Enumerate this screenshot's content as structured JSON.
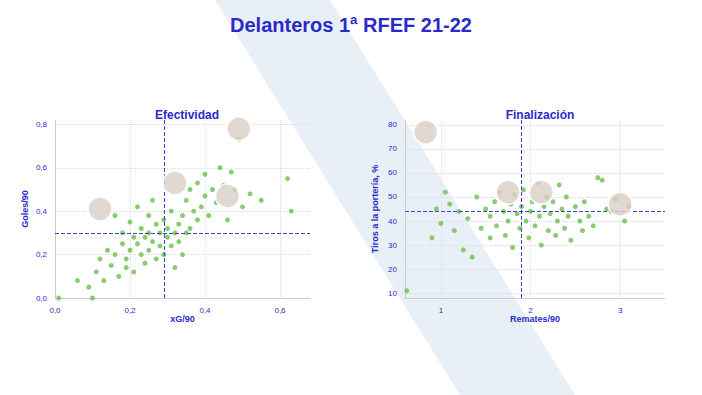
{
  "title": "Delanteros 1ª RFEF 21-22",
  "chart_data": [
    {
      "type": "scatter",
      "title": "Efectividad",
      "x_label": "xG/90",
      "y_label": "Goles/90",
      "xlim": [
        0,
        0.68
      ],
      "ylim": [
        0,
        0.82
      ],
      "xticks": [
        {
          "value": 0,
          "label": "0,0"
        },
        {
          "value": 0.2,
          "label": "0,2"
        },
        {
          "value": 0.4,
          "label": "0,4"
        },
        {
          "value": 0.6,
          "label": "0,6"
        }
      ],
      "yticks": [
        {
          "value": 0,
          "label": "0,0"
        },
        {
          "value": 0.2,
          "label": "0,2"
        },
        {
          "value": 0.4,
          "label": "0,4"
        },
        {
          "value": 0.6,
          "label": "0,6"
        },
        {
          "value": 0.8,
          "label": "0,8"
        }
      ],
      "grid": true,
      "reference_lines": {
        "x": 0.29,
        "y": 0.305
      },
      "series": [
        {
          "color": "#6cbf4a",
          "marker": "circle",
          "values": [
            [
              0.01,
              0
            ],
            [
              0.06,
              0.08
            ],
            [
              0.09,
              0.05
            ],
            [
              0.1,
              0.0
            ],
            [
              0.11,
              0.12
            ],
            [
              0.12,
              0.18
            ],
            [
              0.13,
              0.08
            ],
            [
              0.14,
              0.22
            ],
            [
              0.15,
              0.15
            ],
            [
              0.16,
              0.2
            ],
            [
              0.16,
              0.38
            ],
            [
              0.17,
              0.1
            ],
            [
              0.18,
              0.25
            ],
            [
              0.18,
              0.3
            ],
            [
              0.19,
              0.18
            ],
            [
              0.19,
              0.14
            ],
            [
              0.2,
              0.22
            ],
            [
              0.2,
              0.35
            ],
            [
              0.21,
              0.28
            ],
            [
              0.21,
              0.12
            ],
            [
              0.22,
              0.42
            ],
            [
              0.22,
              0.25
            ],
            [
              0.23,
              0.2
            ],
            [
              0.23,
              0.32
            ],
            [
              0.24,
              0.28
            ],
            [
              0.24,
              0.16
            ],
            [
              0.25,
              0.3
            ],
            [
              0.25,
              0.38
            ],
            [
              0.25,
              0.22
            ],
            [
              0.26,
              0.45
            ],
            [
              0.26,
              0.26
            ],
            [
              0.27,
              0.34
            ],
            [
              0.27,
              0.18
            ],
            [
              0.28,
              0.3
            ],
            [
              0.28,
              0.24
            ],
            [
              0.29,
              0.36
            ],
            [
              0.29,
              0.2
            ],
            [
              0.3,
              0.28
            ],
            [
              0.3,
              0.32
            ],
            [
              0.31,
              0.24
            ],
            [
              0.31,
              0.4
            ],
            [
              0.32,
              0.3
            ],
            [
              0.32,
              0.14
            ],
            [
              0.33,
              0.34
            ],
            [
              0.33,
              0.26
            ],
            [
              0.34,
              0.38
            ],
            [
              0.34,
              0.2
            ],
            [
              0.35,
              0.45
            ],
            [
              0.35,
              0.3
            ],
            [
              0.36,
              0.32
            ],
            [
              0.36,
              0.5
            ],
            [
              0.37,
              0.4
            ],
            [
              0.38,
              0.53
            ],
            [
              0.38,
              0.36
            ],
            [
              0.39,
              0.42
            ],
            [
              0.4,
              0.57
            ],
            [
              0.4,
              0.47
            ],
            [
              0.41,
              0.38
            ],
            [
              0.42,
              0.5
            ],
            [
              0.43,
              0.44
            ],
            [
              0.44,
              0.6
            ],
            [
              0.45,
              0.52
            ],
            [
              0.46,
              0.36
            ],
            [
              0.47,
              0.58
            ],
            [
              0.48,
              0.5
            ],
            [
              0.49,
              0.73
            ],
            [
              0.5,
              0.42
            ],
            [
              0.52,
              0.48
            ],
            [
              0.55,
              0.45
            ],
            [
              0.62,
              0.55
            ],
            [
              0.63,
              0.4
            ]
          ]
        },
        {
          "color": "#d9cfc6",
          "marker": "circle",
          "values": [
            [
              0.49,
              0.78
            ],
            [
              0.32,
              0.53
            ],
            [
              0.46,
              0.47
            ],
            [
              0.12,
              0.41
            ]
          ]
        }
      ]
    },
    {
      "type": "scatter",
      "title": "Finalización",
      "x_label": "Remates/90",
      "y_label": "Tiros a la portería, %",
      "xlim": [
        0.6,
        3.5
      ],
      "ylim": [
        8,
        82
      ],
      "xticks": [
        1,
        2,
        3
      ],
      "yticks": [
        10,
        20,
        30,
        40,
        50,
        60,
        70,
        80
      ],
      "grid": true,
      "reference_lines": {
        "x": 1.9,
        "y": 44
      },
      "series": [
        {
          "color": "#6cbf4a",
          "marker": "circle",
          "values": [
            [
              0.62,
              11
            ],
            [
              0.9,
              33
            ],
            [
              0.95,
              45
            ],
            [
              1.0,
              39
            ],
            [
              1.05,
              52
            ],
            [
              1.1,
              47
            ],
            [
              1.15,
              36
            ],
            [
              1.2,
              44
            ],
            [
              1.25,
              28
            ],
            [
              1.3,
              41
            ],
            [
              1.35,
              25
            ],
            [
              1.4,
              50
            ],
            [
              1.45,
              37
            ],
            [
              1.5,
              45
            ],
            [
              1.55,
              33
            ],
            [
              1.55,
              42
            ],
            [
              1.6,
              48
            ],
            [
              1.62,
              38
            ],
            [
              1.65,
              52
            ],
            [
              1.7,
              44
            ],
            [
              1.72,
              34
            ],
            [
              1.75,
              40
            ],
            [
              1.78,
              47
            ],
            [
              1.8,
              29
            ],
            [
              1.82,
              51
            ],
            [
              1.85,
              43
            ],
            [
              1.88,
              37
            ],
            [
              1.9,
              46
            ],
            [
              1.92,
              53
            ],
            [
              1.95,
              40
            ],
            [
              1.98,
              33
            ],
            [
              2.0,
              44
            ],
            [
              2.02,
              48
            ],
            [
              2.05,
              38
            ],
            [
              2.08,
              56
            ],
            [
              2.1,
              42
            ],
            [
              2.12,
              30
            ],
            [
              2.15,
              46
            ],
            [
              2.18,
              50
            ],
            [
              2.2,
              36
            ],
            [
              2.22,
              43
            ],
            [
              2.25,
              48
            ],
            [
              2.28,
              34
            ],
            [
              2.3,
              40
            ],
            [
              2.32,
              55
            ],
            [
              2.35,
              45
            ],
            [
              2.38,
              37
            ],
            [
              2.4,
              50
            ],
            [
              2.42,
              42
            ],
            [
              2.45,
              32
            ],
            [
              2.5,
              46
            ],
            [
              2.55,
              40
            ],
            [
              2.58,
              36
            ],
            [
              2.6,
              48
            ],
            [
              2.65,
              42
            ],
            [
              2.7,
              38
            ],
            [
              2.75,
              58
            ],
            [
              2.8,
              57
            ],
            [
              2.85,
              45
            ],
            [
              2.9,
              44
            ],
            [
              2.95,
              49
            ],
            [
              3.05,
              40
            ],
            [
              3.1,
              46
            ]
          ]
        },
        {
          "color": "#d9cfc6",
          "marker": "circle",
          "values": [
            [
              0.83,
              77
            ],
            [
              1.75,
              52
            ],
            [
              2.12,
              52
            ],
            [
              3.0,
              47
            ]
          ]
        }
      ]
    }
  ]
}
